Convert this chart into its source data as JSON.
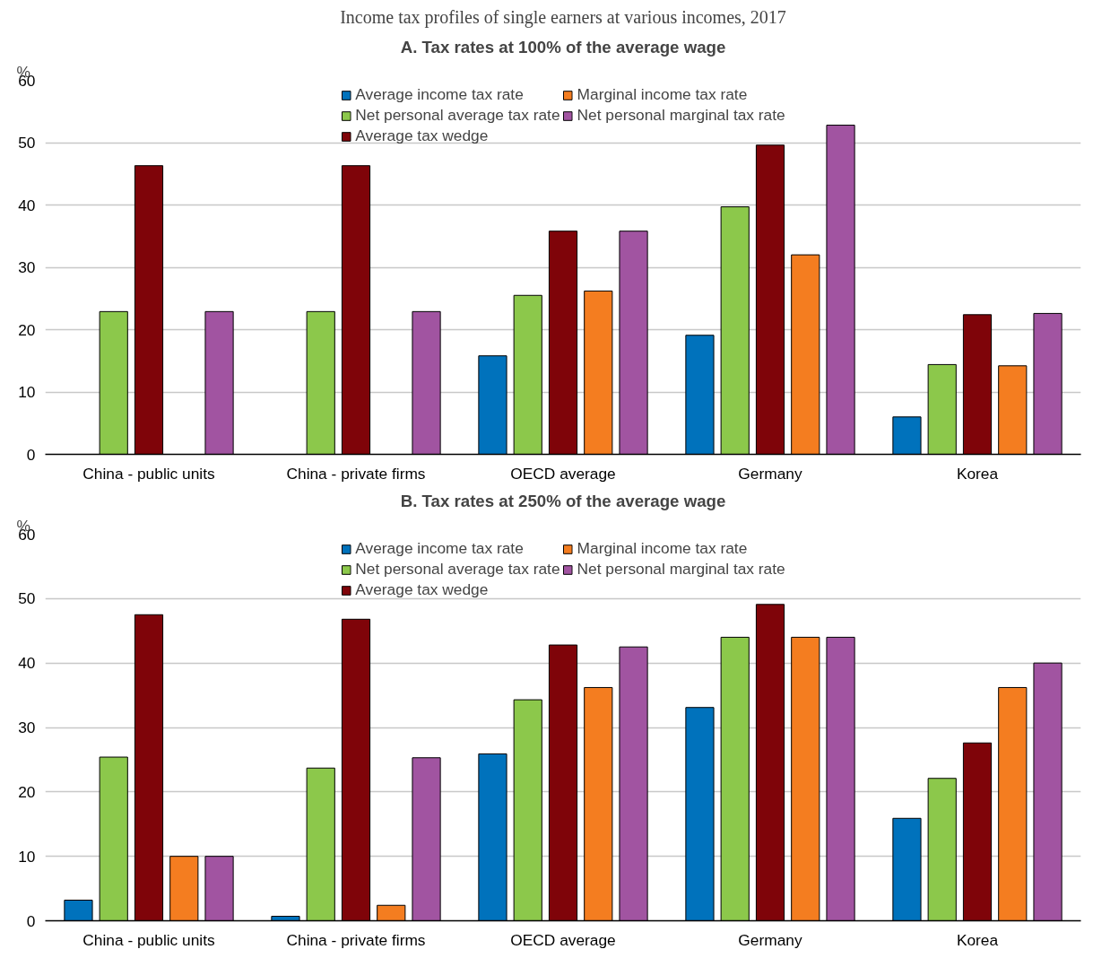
{
  "chart_data": [
    {
      "type": "bar",
      "title": "Income tax profiles of single earners at various incomes, 2017",
      "subtitle": "A. Tax rates at 100% of the average wage",
      "ylabel": "%",
      "categories": [
        "China - public units",
        "China - private firms",
        "OECD average",
        "Germany",
        "Korea"
      ],
      "series": [
        {
          "name": "Average income tax rate",
          "color": "#0072bc",
          "values": [
            null,
            null,
            15.8,
            19.1,
            6.0
          ]
        },
        {
          "name": "Net personal average tax rate",
          "color": "#8cc84b",
          "values": [
            22.9,
            22.9,
            25.5,
            39.7,
            14.4
          ]
        },
        {
          "name": "Average tax wedge",
          "color": "#7f0409",
          "values": [
            46.3,
            46.3,
            35.8,
            49.6,
            22.4
          ]
        },
        {
          "name": "Marginal income tax rate",
          "color": "#f47d20",
          "values": [
            null,
            null,
            26.2,
            32.0,
            14.2
          ]
        },
        {
          "name": "Net personal marginal tax rate",
          "color": "#a154a1",
          "values": [
            22.9,
            22.9,
            35.8,
            52.8,
            22.6
          ]
        }
      ],
      "ylim": [
        0,
        60
      ],
      "yticks": [
        0,
        10,
        20,
        30,
        40,
        50,
        60
      ],
      "grid": "y",
      "legend": "top"
    },
    {
      "type": "bar",
      "title": "B. Tax rates at 250% of the average wage",
      "ylabel": "%",
      "categories": [
        "China - public units",
        "China - private firms",
        "OECD average",
        "Germany",
        "Korea"
      ],
      "series": [
        {
          "name": "Average income tax rate",
          "color": "#0072bc",
          "values": [
            3.2,
            0.7,
            25.9,
            33.1,
            15.9
          ]
        },
        {
          "name": "Net personal average tax rate",
          "color": "#8cc84b",
          "values": [
            25.4,
            23.7,
            34.3,
            44.0,
            22.1
          ]
        },
        {
          "name": "Average tax wedge",
          "color": "#7f0409",
          "values": [
            47.5,
            46.8,
            42.8,
            49.1,
            27.6
          ]
        },
        {
          "name": "Marginal income tax rate",
          "color": "#f47d20",
          "values": [
            10.0,
            2.4,
            36.2,
            44.0,
            36.2
          ]
        },
        {
          "name": "Net personal marginal tax rate",
          "color": "#a154a1",
          "values": [
            10.0,
            25.3,
            42.5,
            44.0,
            40.0
          ]
        }
      ],
      "ylim": [
        0,
        60
      ],
      "yticks": [
        0,
        10,
        20,
        30,
        40,
        50,
        60
      ],
      "grid": "y",
      "legend": "top"
    }
  ]
}
